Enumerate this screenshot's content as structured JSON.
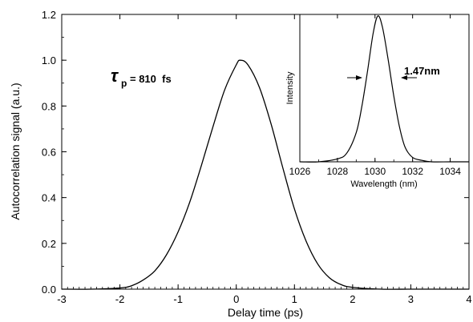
{
  "chart_data": [
    {
      "type": "line",
      "xlabel": "Delay time (ps)",
      "ylabel": "Autocorrelation signal (a.u.)",
      "xlim": [
        -3,
        4
      ],
      "ylim": [
        0,
        1.2
      ],
      "xticks": [
        "-3",
        "-2",
        "-1",
        "0",
        "1",
        "2",
        "3",
        "4"
      ],
      "yticks": [
        "0.0",
        "0.2",
        "0.4",
        "0.6",
        "0.8",
        "1.0",
        "1.2"
      ],
      "grid": false,
      "annotation": {
        "symbol": "τ",
        "subscript": "p",
        "text": "= 810  fs"
      },
      "series": [
        {
          "x": [
            -3.0,
            -2.5,
            -2.0,
            -1.8,
            -1.6,
            -1.4,
            -1.2,
            -1.0,
            -0.8,
            -0.6,
            -0.4,
            -0.2,
            0.0,
            0.07,
            0.2,
            0.4,
            0.6,
            0.8,
            1.0,
            1.2,
            1.4,
            1.6,
            1.8,
            2.0,
            2.5,
            3.0,
            3.5,
            4.0
          ],
          "y": [
            0.0,
            0.0,
            0.005,
            0.015,
            0.04,
            0.08,
            0.15,
            0.25,
            0.38,
            0.54,
            0.71,
            0.87,
            0.98,
            1.0,
            0.98,
            0.88,
            0.72,
            0.53,
            0.35,
            0.21,
            0.11,
            0.05,
            0.02,
            0.008,
            0.0,
            0.0,
            0.0,
            0.0
          ]
        }
      ]
    },
    {
      "type": "line",
      "xlabel": "Wavelength (nm)",
      "ylabel": "Intensity",
      "xlim": [
        1026,
        1035
      ],
      "xticks": [
        "1026",
        "1028",
        "1030",
        "1032",
        "1034"
      ],
      "grid": false,
      "annotation": {
        "text": "1.47nm"
      },
      "series": [
        {
          "x": [
            1026.0,
            1027.0,
            1028.0,
            1028.5,
            1029.0,
            1029.3,
            1029.6,
            1029.9,
            1030.15,
            1030.4,
            1030.7,
            1031.0,
            1031.3,
            1031.6,
            1032.0,
            1032.5,
            1033.0,
            1034.0,
            1035.0
          ],
          "y": [
            0.0,
            0.0,
            0.02,
            0.06,
            0.2,
            0.38,
            0.62,
            0.88,
            1.0,
            0.92,
            0.7,
            0.45,
            0.24,
            0.1,
            0.03,
            0.01,
            0.0,
            0.0,
            0.0
          ]
        }
      ]
    }
  ]
}
